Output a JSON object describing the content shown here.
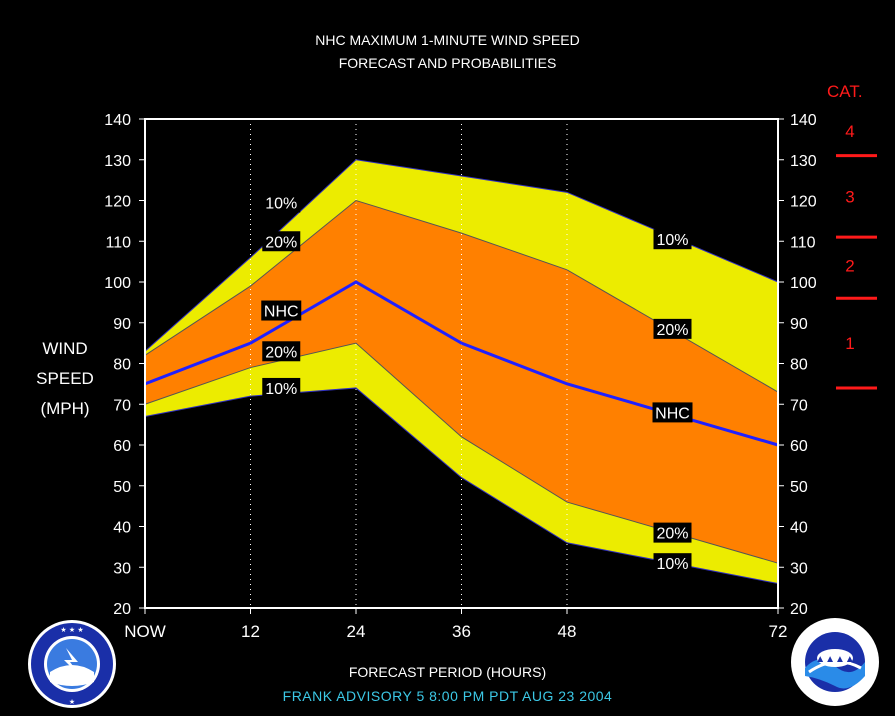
{
  "chart_data": {
    "type": "area",
    "title": "NHC MAXIMUM 1-MINUTE WIND SPEED",
    "subtitle": "FORECAST AND PROBABILITIES",
    "xlabel": "FORECAST PERIOD (HOURS)",
    "ylabel": [
      "WIND",
      "SPEED",
      "(MPH)"
    ],
    "x_ticks": [
      {
        "x": 0,
        "label": "NOW"
      },
      {
        "x": 12,
        "label": "12"
      },
      {
        "x": 24,
        "label": "24"
      },
      {
        "x": 36,
        "label": "36"
      },
      {
        "x": 48,
        "label": "48"
      },
      {
        "x": 72,
        "label": "72"
      }
    ],
    "y_ticks": [
      "20",
      "30",
      "40",
      "50",
      "60",
      "70",
      "80",
      "90",
      "100",
      "110",
      "120",
      "130",
      "140"
    ],
    "ylim": [
      20,
      140
    ],
    "xlim": [
      0,
      72
    ],
    "x": [
      0,
      12,
      24,
      36,
      48,
      72
    ],
    "bands": {
      "upper_10": [
        83,
        106,
        130,
        126,
        122,
        100
      ],
      "upper_20": [
        82,
        99,
        120,
        112,
        103,
        73
      ],
      "nhc": [
        75,
        85,
        100,
        85,
        75,
        60
      ],
      "lower_20": [
        70,
        79,
        85,
        62,
        46,
        31
      ],
      "lower_10": [
        67,
        72,
        74,
        52,
        36,
        26
      ]
    },
    "colors": {
      "band_10": "#ecec00",
      "band_20": "#ff8000",
      "nhc_line": "#2020ff",
      "background": "#000000",
      "plot_border": "#ffffff",
      "category": "#ff1a1a",
      "advisory": "#3cc8e6"
    },
    "labels": [
      {
        "text": "10%",
        "x": 15.5,
        "y": 119.5
      },
      {
        "text": "20%",
        "x": 15.5,
        "y": 110
      },
      {
        "text": "NHC",
        "x": 15.5,
        "y": 93
      },
      {
        "text": "20%",
        "x": 15.5,
        "y": 83
      },
      {
        "text": "10%",
        "x": 15.5,
        "y": 74
      },
      {
        "text": "10%",
        "x": 60,
        "y": 110.5
      },
      {
        "text": "20%",
        "x": 60,
        "y": 88.5
      },
      {
        "text": "NHC",
        "x": 60,
        "y": 68
      },
      {
        "text": "20%",
        "x": 60,
        "y": 38.5
      },
      {
        "text": "10%",
        "x": 60,
        "y": 31
      }
    ],
    "categories": {
      "title": "CAT.",
      "items": [
        {
          "label": "4",
          "y": 137
        },
        {
          "label": "3",
          "y": 121
        },
        {
          "label": "2",
          "y": 104
        },
        {
          "label": "1",
          "y": 85
        }
      ],
      "thresholds": [
        131,
        111,
        96,
        74
      ]
    },
    "advisory": "FRANK   ADVISORY  5  8:00  PM  PDT  AUG  23  2004"
  }
}
